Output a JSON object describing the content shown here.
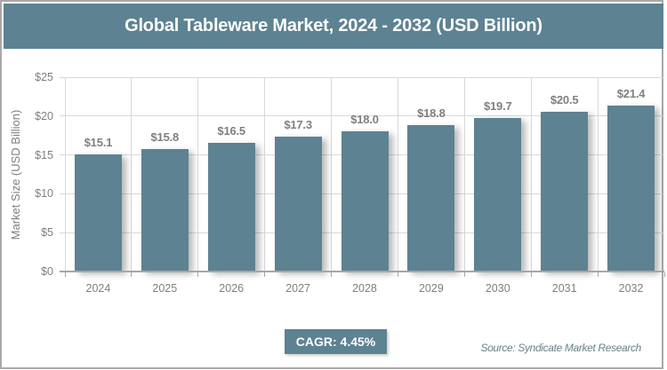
{
  "header": {
    "title": "Global Tableware Market, 2024 - 2032 (USD Billion)"
  },
  "chart_data": {
    "type": "bar",
    "categories": [
      "2024",
      "2025",
      "2026",
      "2027",
      "2028",
      "2029",
      "2030",
      "2031",
      "2032"
    ],
    "values": [
      15.1,
      15.8,
      16.5,
      17.3,
      18.0,
      18.8,
      19.7,
      20.5,
      21.4
    ],
    "value_labels": [
      "$15.1",
      "$15.8",
      "$16.5",
      "$17.3",
      "$18.0",
      "$18.8",
      "$19.7",
      "$20.5",
      "$21.4"
    ],
    "title": "Global Tableware Market, 2024 - 2032 (USD Billion)",
    "xlabel": "",
    "ylabel": "Market Size (USD Billion)",
    "ylim": [
      0,
      25
    ],
    "ytick_step": 5,
    "ytick_labels": [
      "$0",
      "$5",
      "$10",
      "$15",
      "$20",
      "$25"
    ],
    "grid": true,
    "legend": false
  },
  "footer": {
    "cagr_label": "CAGR: 4.45%",
    "source": "Source: Syndicate Market Research"
  },
  "colors": {
    "accent": "#5d8292",
    "label_gray": "#7f7f7f",
    "grid_line": "#d9d9d9",
    "axis_line": "#a6a6a6",
    "frame_border": "#a9a9a9",
    "source_text": "#6a818b"
  }
}
